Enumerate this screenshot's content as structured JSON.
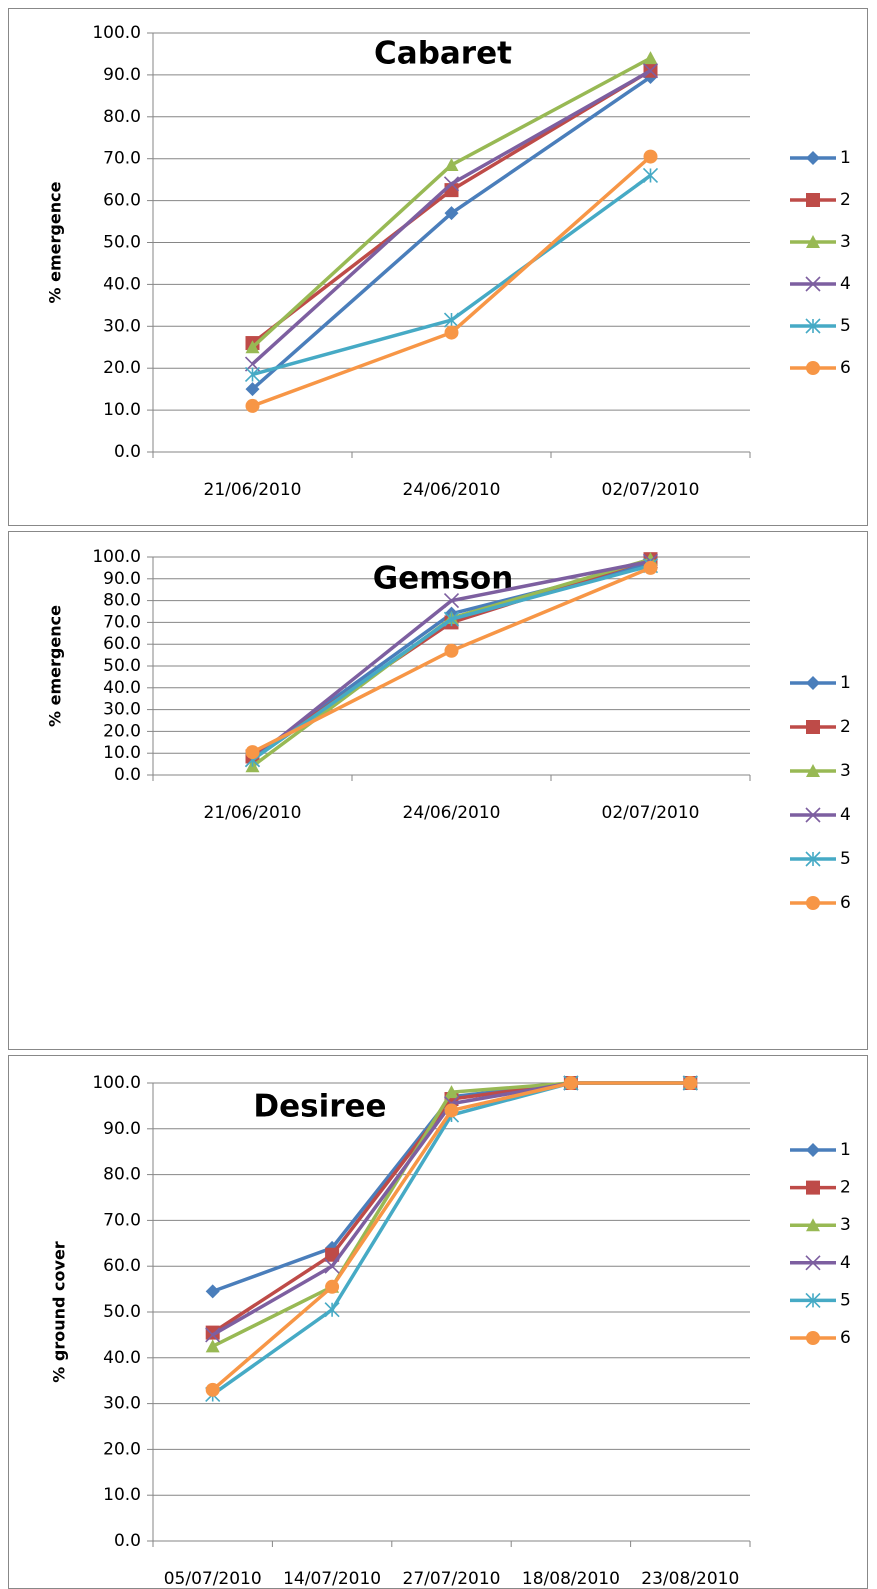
{
  "chart_data": [
    {
      "type": "line",
      "title": "Cabaret",
      "y_label": "% emergence",
      "categories": [
        "21/06/2010",
        "24/06/2010",
        "02/07/2010"
      ],
      "ylim": [
        0,
        100
      ],
      "yticks": [
        {
          "value": 0,
          "label": "0.0"
        },
        {
          "value": 10,
          "label": "10.0"
        },
        {
          "value": 20,
          "label": "20.0"
        },
        {
          "value": 30,
          "label": "30.0"
        },
        {
          "value": 40,
          "label": "40.0"
        },
        {
          "value": 50,
          "label": "50.0"
        },
        {
          "value": 60,
          "label": "60.0"
        },
        {
          "value": 70,
          "label": "70.0"
        },
        {
          "value": 80,
          "label": "80.0"
        },
        {
          "value": 90,
          "label": "90.0"
        },
        {
          "value": 100,
          "label": "100.0"
        }
      ],
      "grid": true,
      "series": [
        {
          "name": "1",
          "color": "#4a7ebb",
          "marker": "diamond",
          "values": [
            15,
            57,
            89.5
          ]
        },
        {
          "name": "2",
          "color": "#be4b48",
          "marker": "square",
          "values": [
            26,
            62.5,
            91
          ]
        },
        {
          "name": "3",
          "color": "#98b954",
          "marker": "triangle",
          "values": [
            25,
            68.5,
            94
          ]
        },
        {
          "name": "4",
          "color": "#7d5fa0",
          "marker": "x",
          "values": [
            21,
            64,
            91
          ]
        },
        {
          "name": "5",
          "color": "#46aac5",
          "marker": "star",
          "values": [
            18.5,
            31.5,
            66
          ]
        },
        {
          "name": "6",
          "color": "#f79646",
          "marker": "circle",
          "values": [
            11,
            28.5,
            70.5
          ]
        }
      ]
    },
    {
      "type": "line",
      "title": "Gemson",
      "y_label": "% emergence",
      "categories": [
        "21/06/2010",
        "24/06/2010",
        "02/07/2010"
      ],
      "ylim": [
        0,
        100
      ],
      "yticks": [
        {
          "value": 0,
          "label": "0.0"
        },
        {
          "value": 10,
          "label": "10.0"
        },
        {
          "value": 20,
          "label": "20.0"
        },
        {
          "value": 30,
          "label": "30.0"
        },
        {
          "value": 40,
          "label": "40.0"
        },
        {
          "value": 50,
          "label": "50.0"
        },
        {
          "value": 60,
          "label": "60.0"
        },
        {
          "value": 70,
          "label": "70.0"
        },
        {
          "value": 80,
          "label": "80.0"
        },
        {
          "value": 90,
          "label": "90.0"
        },
        {
          "value": 100,
          "label": "100.0"
        }
      ],
      "grid": true,
      "series": [
        {
          "name": "1",
          "color": "#4a7ebb",
          "marker": "diamond",
          "values": [
            8,
            74,
            97
          ]
        },
        {
          "name": "2",
          "color": "#be4b48",
          "marker": "square",
          "values": [
            8.5,
            70,
            99
          ]
        },
        {
          "name": "3",
          "color": "#98b954",
          "marker": "triangle",
          "values": [
            4,
            72,
            99
          ]
        },
        {
          "name": "4",
          "color": "#7d5fa0",
          "marker": "x",
          "values": [
            7,
            80,
            98
          ]
        },
        {
          "name": "5",
          "color": "#46aac5",
          "marker": "star",
          "values": [
            7,
            71.5,
            96
          ]
        },
        {
          "name": "6",
          "color": "#f79646",
          "marker": "circle",
          "values": [
            10.5,
            57,
            95
          ]
        }
      ]
    },
    {
      "type": "line",
      "title": "Desiree",
      "y_label": "% ground cover",
      "categories": [
        "05/07/2010",
        "14/07/2010",
        "27/07/2010",
        "18/08/2010",
        "23/08/2010"
      ],
      "ylim": [
        0,
        100
      ],
      "yticks": [
        {
          "value": 0,
          "label": "0.0"
        },
        {
          "value": 10,
          "label": "10.0"
        },
        {
          "value": 20,
          "label": "20.0"
        },
        {
          "value": 30,
          "label": "30.0"
        },
        {
          "value": 40,
          "label": "40.0"
        },
        {
          "value": 50,
          "label": "50.0"
        },
        {
          "value": 60,
          "label": "60.0"
        },
        {
          "value": 70,
          "label": "70.0"
        },
        {
          "value": 80,
          "label": "80.0"
        },
        {
          "value": 90,
          "label": "90.0"
        },
        {
          "value": 100,
          "label": "100.0"
        }
      ],
      "grid": true,
      "series": [
        {
          "name": "1",
          "color": "#4a7ebb",
          "marker": "diamond",
          "values": [
            54.5,
            64,
            97,
            100,
            100
          ]
        },
        {
          "name": "2",
          "color": "#be4b48",
          "marker": "square",
          "values": [
            45.5,
            62.5,
            96.5,
            100,
            100
          ]
        },
        {
          "name": "3",
          "color": "#98b954",
          "marker": "triangle",
          "values": [
            42.5,
            55.5,
            98,
            100,
            100
          ]
        },
        {
          "name": "4",
          "color": "#7d5fa0",
          "marker": "x",
          "values": [
            45,
            60,
            95.5,
            100,
            100
          ]
        },
        {
          "name": "5",
          "color": "#46aac5",
          "marker": "star",
          "values": [
            32,
            50.5,
            93,
            100,
            100
          ]
        },
        {
          "name": "6",
          "color": "#f79646",
          "marker": "circle",
          "values": [
            33,
            55.5,
            94,
            100,
            100
          ]
        }
      ]
    }
  ]
}
